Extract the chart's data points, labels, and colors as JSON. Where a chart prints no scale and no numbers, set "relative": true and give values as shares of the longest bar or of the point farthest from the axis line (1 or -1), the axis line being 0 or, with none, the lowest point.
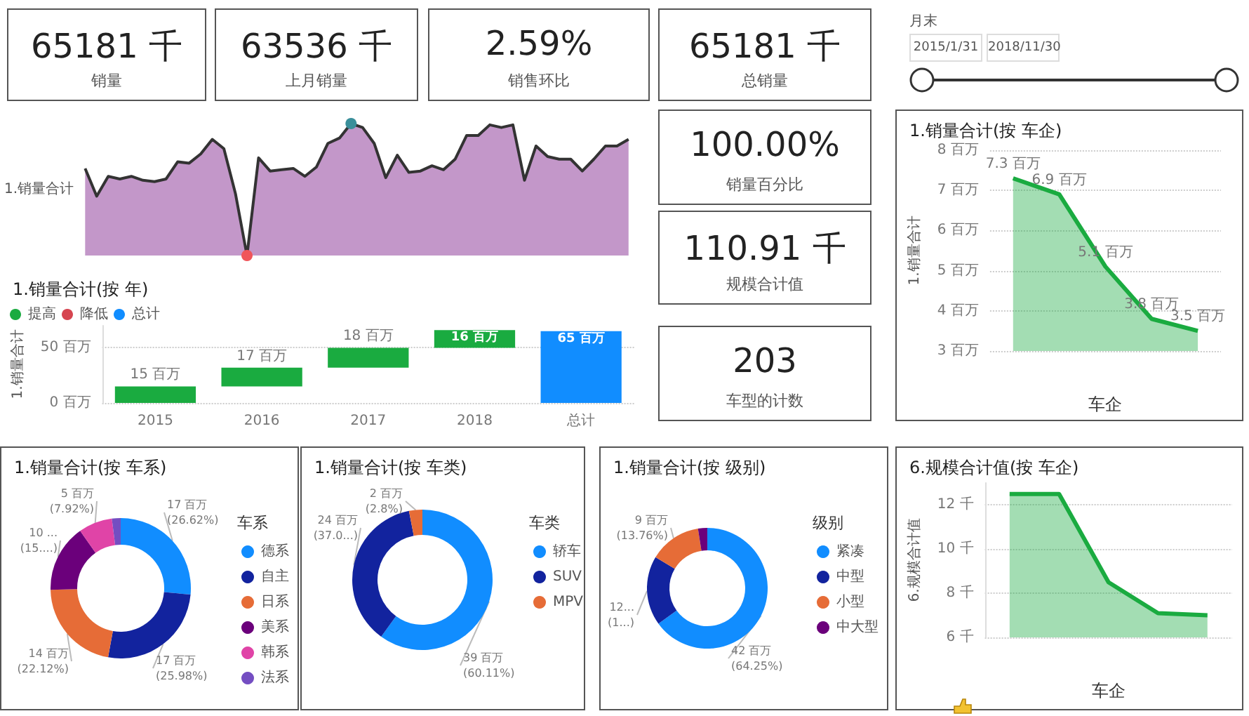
{
  "chart_data": [
    {
      "type": "other",
      "title": "65181 千",
      "subtitle": "销量"
    },
    {
      "type": "other",
      "title": "63536 千",
      "subtitle": "上月销量"
    },
    {
      "type": "other",
      "title": "2.59%",
      "subtitle": "销售环比"
    },
    {
      "type": "other",
      "title": "65181 千",
      "subtitle": "总销量"
    },
    {
      "type": "other",
      "title": "月末",
      "annotations": [
        "2015/1/31",
        "2018/11/30"
      ]
    },
    {
      "type": "area",
      "relative": true,
      "ylabel": "1.销量合计",
      "legend": false,
      "grid": false,
      "categories": [
        null,
        null,
        null,
        null,
        null,
        null,
        null,
        null,
        null,
        null,
        null,
        null,
        null,
        null,
        null,
        null,
        null,
        null,
        null,
        null,
        null,
        null,
        null,
        null,
        null,
        null,
        null,
        null,
        null,
        null,
        null,
        null,
        null,
        null,
        null,
        null,
        null,
        null,
        null,
        null,
        null,
        null,
        null,
        null,
        null,
        null,
        null,
        null
      ],
      "color": "#c397c9",
      "values": [
        0.66,
        0.45,
        0.6,
        0.58,
        0.6,
        0.57,
        0.56,
        0.58,
        0.71,
        0.7,
        0.77,
        0.88,
        0.81,
        0.47,
        0,
        0.74,
        0.64,
        0.65,
        0.66,
        0.6,
        0.67,
        0.85,
        0.89,
        1,
        0.97,
        0.85,
        0.59,
        0.76,
        0.63,
        0.64,
        0.68,
        0.65,
        0.73,
        0.91,
        0.91,
        0.99,
        0.97,
        0.99,
        0.57,
        0.83,
        0.75,
        0.73,
        0.73,
        0.64,
        0.73,
        0.83,
        0.83,
        0.88
      ],
      "colors": [
        null,
        null,
        null,
        null,
        null,
        null,
        null,
        null,
        null,
        null,
        null,
        null,
        null,
        null,
        "#f0555a",
        null,
        null,
        null,
        null,
        null,
        null,
        null,
        null,
        "#3a8f9a",
        null,
        null,
        null,
        null,
        null,
        null,
        null,
        null,
        null,
        null,
        null,
        null,
        null,
        null,
        null,
        null,
        null,
        null,
        null,
        null,
        null,
        null,
        null,
        null
      ]
    },
    {
      "type": "other",
      "title": "100.00%",
      "subtitle": "销量百分比"
    },
    {
      "type": "bar",
      "title": "1.销量合计(按 年)",
      "ylabel": "1.销量合计",
      "legend": "top left",
      "grid": "y",
      "categories": [
        "2015",
        "2016",
        "2017",
        "2018",
        "总计"
      ],
      "ylim": [
        0,
        70
      ],
      "yticks": [
        {
          "value": 0,
          "label": "0 百万"
        },
        {
          "value": 50,
          "label": "50 百万"
        }
      ],
      "series": [
        {
          "name": "提高",
          "color": "#1aab40",
          "base": [
            0,
            15,
            32,
            50,
            null
          ],
          "values": [
            15,
            17,
            18,
            16,
            null
          ],
          "value_labels": [
            "15 百万",
            "17 百万",
            "18 百万",
            "16 百万",
            null
          ]
        },
        {
          "name": "降低",
          "color": "#d64550",
          "base": [
            null,
            null,
            null,
            null,
            null
          ],
          "values": [
            null,
            null,
            null,
            null,
            null
          ]
        },
        {
          "name": "总计",
          "color": "#118dff",
          "base": [
            null,
            null,
            null,
            null,
            0
          ],
          "values": [
            null,
            null,
            null,
            null,
            65
          ],
          "value_labels": [
            null,
            null,
            null,
            null,
            "65 百万"
          ]
        }
      ]
    },
    {
      "type": "other",
      "title": "110.91 千",
      "subtitle": "规模合计值"
    },
    {
      "type": "other",
      "title": "203",
      "subtitle": "车型的计数"
    },
    {
      "type": "area",
      "title": "1.销量合计(按 车企)",
      "xlabel": "车企",
      "ylabel": "1.销量合计",
      "grid": "y",
      "categories": [
        null,
        null,
        null,
        null,
        null
      ],
      "ylim": [
        3,
        8
      ],
      "yticks": [
        {
          "value": 3,
          "label": "3 百万"
        },
        {
          "value": 4,
          "label": "4 百万"
        },
        {
          "value": 5,
          "label": "5 百万"
        },
        {
          "value": 6,
          "label": "6 百万"
        },
        {
          "value": 7,
          "label": "7 百万"
        },
        {
          "value": 8,
          "label": "8 百万"
        }
      ],
      "series": [
        {
          "color": "#1aab40",
          "values": [
            7.3,
            6.9,
            5.1,
            3.8,
            3.5
          ],
          "value_labels": [
            "7.3 百万",
            "6.9 百万",
            "5.1 百万",
            "3.8 百万",
            "3.5 百万"
          ]
        }
      ]
    },
    {
      "type": "donut",
      "title": "1.销量合计(按 车系)",
      "legend_title": "车系",
      "legend": "right",
      "categories": [
        "德系",
        "自主",
        "日系",
        "美系",
        "韩系",
        "法系"
      ],
      "values": [
        17,
        17,
        14,
        10,
        5,
        1.3
      ],
      "colors": [
        "#118dff",
        "#12239e",
        "#e66c37",
        "#6b007b",
        "#e044a7",
        "#744ec2"
      ],
      "value_labels": [
        "17 百万\n(26.62%)",
        "17 百万\n(25.98%)",
        "14 百万\n(22.12%)",
        "10 ...\n(15....)",
        "5 百万\n(7.92%)",
        null
      ]
    },
    {
      "type": "donut",
      "title": "1.销量合计(按 车类)",
      "legend_title": "车类",
      "legend": "right",
      "categories": [
        "轿车",
        "SUV",
        "MPV"
      ],
      "values": [
        39,
        24,
        2
      ],
      "colors": [
        "#118dff",
        "#12239e",
        "#e66c37"
      ],
      "value_labels": [
        "39 百万\n(60.11%)",
        "24 百万\n(37.0...)",
        "2 百万\n(2.8%)"
      ]
    },
    {
      "type": "donut",
      "title": "1.销量合计(按 级别)",
      "legend_title": "级别",
      "legend": "right",
      "categories": [
        "紧凑",
        "中型",
        "小型",
        "中大型"
      ],
      "values": [
        42,
        12,
        9,
        1.6
      ],
      "colors": [
        "#118dff",
        "#12239e",
        "#e66c37",
        "#6b007b"
      ],
      "value_labels": [
        "42 百万\n(64.25%)",
        "12...\n(1...)",
        "9 百万\n(13.76%)",
        null
      ]
    },
    {
      "type": "area",
      "title": "6.规模合计值(按 车企)",
      "xlabel": "车企",
      "ylabel": "6.规模合计值",
      "grid": "y",
      "categories": [
        null,
        null,
        null,
        null,
        null
      ],
      "ylim": [
        6,
        13
      ],
      "yticks": [
        {
          "value": 6,
          "label": "6 千"
        },
        {
          "value": 8,
          "label": "8 千"
        },
        {
          "value": 10,
          "label": "10 千"
        },
        {
          "value": 12,
          "label": "12 千"
        }
      ],
      "series": [
        {
          "color": "#1aab40",
          "values": [
            12.5,
            12.5,
            8.5,
            7.1,
            7.0
          ]
        }
      ]
    }
  ]
}
